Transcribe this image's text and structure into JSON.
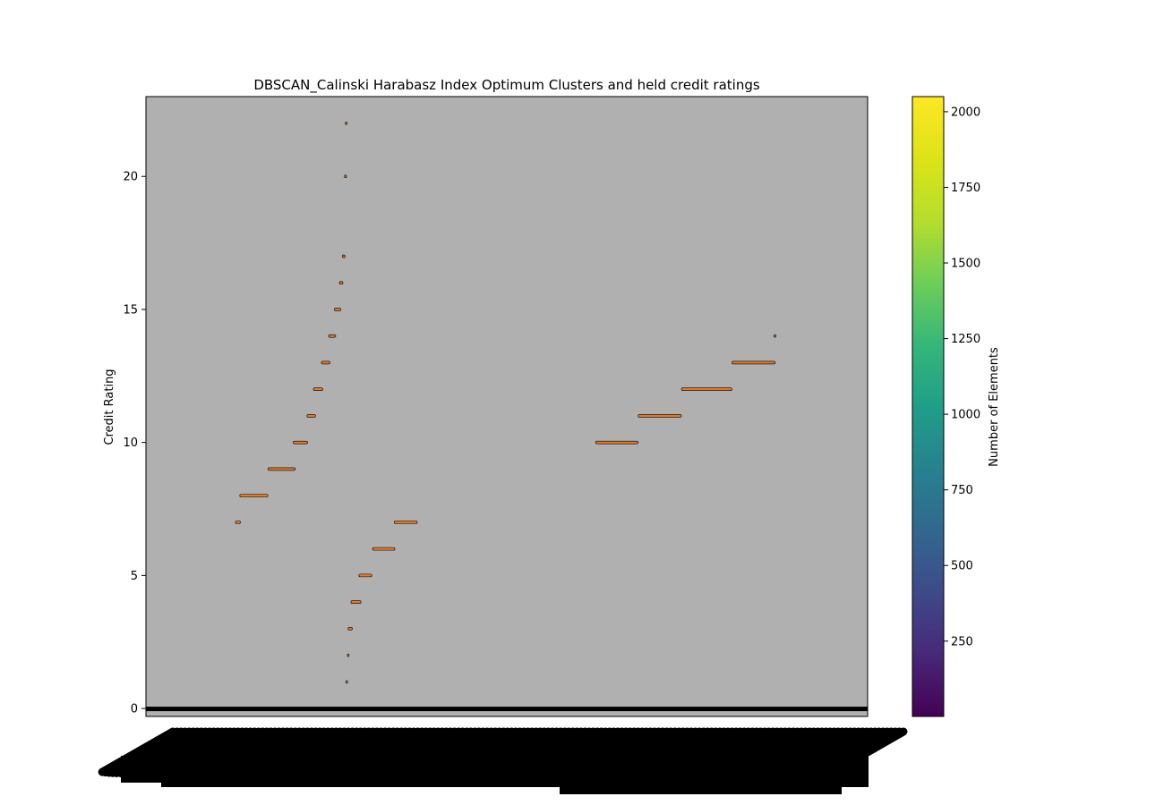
{
  "chart_data": {
    "type": "scatter",
    "title": "DBSCAN_Calinski Harabasz Index Optimum Clusters and held credit ratings",
    "xlabel": "",
    "ylabel": "Credit Rating",
    "ylim": [
      -0.3,
      23
    ],
    "yticks": [
      0,
      5,
      10,
      15,
      20
    ],
    "x_tick_labels_legible": false,
    "plot_background": "#b0b0b0",
    "marker_color": "#e07b29",
    "marker_edge_color": "#000000",
    "grid": false,
    "segments": [
      {
        "rating": 0,
        "x_start": 0.0,
        "x_end": 1.0
      },
      {
        "rating": 1,
        "x_start": 0.277,
        "x_end": 0.279
      },
      {
        "rating": 2,
        "x_start": 0.279,
        "x_end": 0.281
      },
      {
        "rating": 3,
        "x_start": 0.28,
        "x_end": 0.286
      },
      {
        "rating": 4,
        "x_start": 0.284,
        "x_end": 0.298
      },
      {
        "rating": 5,
        "x_start": 0.295,
        "x_end": 0.313
      },
      {
        "rating": 6,
        "x_start": 0.314,
        "x_end": 0.345
      },
      {
        "rating": 7,
        "x_start": 0.124,
        "x_end": 0.131
      },
      {
        "rating": 7,
        "x_start": 0.344,
        "x_end": 0.376
      },
      {
        "rating": 8,
        "x_start": 0.13,
        "x_end": 0.169
      },
      {
        "rating": 9,
        "x_start": 0.169,
        "x_end": 0.207
      },
      {
        "rating": 10,
        "x_start": 0.204,
        "x_end": 0.224
      },
      {
        "rating": 11,
        "x_start": 0.223,
        "x_end": 0.235
      },
      {
        "rating": 12,
        "x_start": 0.232,
        "x_end": 0.245
      },
      {
        "rating": 13,
        "x_start": 0.243,
        "x_end": 0.255
      },
      {
        "rating": 14,
        "x_start": 0.253,
        "x_end": 0.263
      },
      {
        "rating": 15,
        "x_start": 0.261,
        "x_end": 0.27
      },
      {
        "rating": 16,
        "x_start": 0.268,
        "x_end": 0.273
      },
      {
        "rating": 17,
        "x_start": 0.272,
        "x_end": 0.276
      },
      {
        "rating": 20,
        "x_start": 0.275,
        "x_end": 0.278
      },
      {
        "rating": 22,
        "x_start": 0.276,
        "x_end": 0.279
      },
      {
        "rating": 10,
        "x_start": 0.623,
        "x_end": 0.682
      },
      {
        "rating": 11,
        "x_start": 0.682,
        "x_end": 0.742
      },
      {
        "rating": 12,
        "x_start": 0.742,
        "x_end": 0.812
      },
      {
        "rating": 13,
        "x_start": 0.812,
        "x_end": 0.872
      },
      {
        "rating": 14,
        "x_start": 0.87,
        "x_end": 0.873
      }
    ],
    "colorbar": {
      "label": "Number of Elements",
      "colormap": "viridis",
      "range": [
        1,
        2050
      ],
      "ticks": [
        250,
        500,
        750,
        1000,
        1250,
        1500,
        1750,
        2000
      ]
    }
  }
}
